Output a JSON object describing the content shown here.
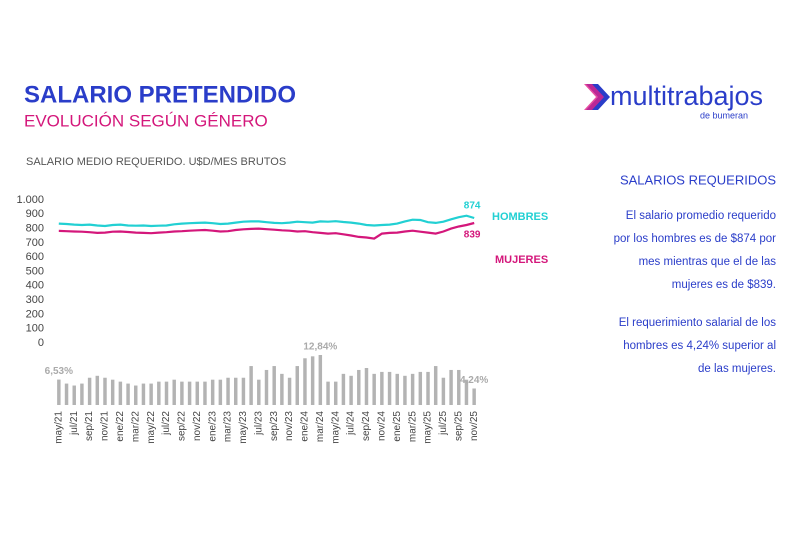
{
  "header": {
    "title": "SALARIO PRETENDIDO",
    "subtitle": "EVOLUCIÓN SEGÚN GÉNERO"
  },
  "logo": {
    "name": "multitrabajos",
    "tagline": "de bumeran"
  },
  "chart_data": [
    {
      "type": "line",
      "title": "SALARIO MEDIO REQUERIDO. U$D/MES BRUTOS",
      "categories": [
        "may/21",
        null,
        "jul/21",
        null,
        "sep/21",
        null,
        "nov/21",
        null,
        "ene/22",
        null,
        "mar/22",
        null,
        "may/22",
        null,
        "jul/22",
        null,
        "sep/22",
        null,
        "nov/22",
        null,
        "ene/23",
        null,
        "mar/23",
        null,
        "may/23",
        null,
        "jul/23",
        null,
        "sep/23",
        null,
        "nov/23",
        null,
        "ene/24",
        null,
        "mar/24",
        null,
        "may/24",
        null,
        "jul/24",
        null,
        "sep/24",
        null,
        "nov/24",
        null,
        "ene/25",
        null,
        "mar/25",
        null,
        "may/25",
        null,
        "jul/25",
        null,
        "sep/25",
        null,
        "nov/25"
      ],
      "series": [
        {
          "name": "HOMBRES",
          "color": "#22d0d3",
          "values": [
            835,
            832,
            828,
            825,
            828,
            822,
            818,
            825,
            828,
            822,
            820,
            822,
            818,
            820,
            822,
            830,
            835,
            838,
            840,
            842,
            838,
            832,
            835,
            842,
            848,
            850,
            850,
            845,
            840,
            838,
            842,
            848,
            845,
            842,
            850,
            848,
            852,
            846,
            842,
            835,
            825,
            822,
            825,
            828,
            835,
            850,
            862,
            860,
            845,
            840,
            848,
            865,
            880,
            890,
            874
          ]
        },
        {
          "name": "MUJERES",
          "color": "#d4177b",
          "values": [
            784,
            782,
            780,
            778,
            775,
            770,
            772,
            778,
            780,
            776,
            772,
            770,
            768,
            772,
            775,
            780,
            782,
            785,
            788,
            790,
            785,
            780,
            782,
            790,
            795,
            798,
            800,
            796,
            792,
            788,
            785,
            780,
            782,
            775,
            770,
            765,
            768,
            760,
            752,
            742,
            738,
            730,
            765,
            770,
            772,
            780,
            785,
            778,
            772,
            765,
            780,
            800,
            815,
            825,
            839
          ]
        }
      ],
      "ylim": [
        0,
        1000
      ],
      "yticks": [
        0,
        100,
        200,
        300,
        400,
        500,
        600,
        700,
        800,
        900,
        {
          "value": 1000,
          "label": "1.000"
        }
      ]
    },
    {
      "type": "bar",
      "color": "#b3b3b3",
      "values": [
        6.53,
        5.5,
        5,
        5.5,
        7,
        7.5,
        7,
        6.5,
        6,
        5.5,
        5,
        5.5,
        5.5,
        6,
        6,
        6.5,
        6,
        6,
        6,
        6,
        6.5,
        6.5,
        7,
        7,
        7,
        10,
        6.5,
        9,
        10,
        8,
        7,
        10,
        12,
        12.5,
        12.84,
        6,
        6,
        8,
        7.5,
        9,
        9.5,
        8,
        8.5,
        8.5,
        8,
        7.5,
        8,
        8.5,
        8.5,
        10,
        7,
        9,
        9,
        6.5,
        4.24
      ],
      "value_labels": [
        "6,53%",
        null,
        null,
        null,
        null,
        null,
        null,
        null,
        null,
        null,
        null,
        null,
        null,
        null,
        null,
        null,
        null,
        null,
        null,
        null,
        null,
        null,
        null,
        null,
        null,
        null,
        null,
        null,
        null,
        null,
        null,
        null,
        null,
        null,
        "12,84%",
        null,
        null,
        null,
        null,
        null,
        null,
        null,
        null,
        null,
        null,
        null,
        null,
        null,
        null,
        null,
        null,
        null,
        null,
        null,
        "4,24%"
      ]
    }
  ],
  "sidebar": {
    "heading": "SALARIOS REQUERIDOS",
    "paragraphs": [
      [
        "El salario promedio requerido",
        "por los hombres es de $874 por",
        "mes mientras que el de las",
        "mujeres es de $839."
      ],
      [
        "El requerimiento salarial de los",
        "hombres es 4,24% superior al",
        "de las mujeres."
      ]
    ]
  }
}
